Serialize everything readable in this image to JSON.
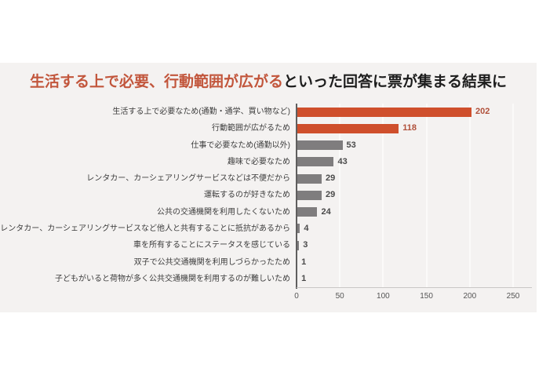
{
  "title": {
    "highlight": "生活する上で必要、行動範囲が広がる",
    "rest": "といった回答に票が集まる結果に"
  },
  "colors": {
    "panel_bg": "#f4f2f1",
    "highlight_bar": "#cf4f2c",
    "default_bar": "#7f7d7e",
    "highlight_value_text": "#b0503a",
    "default_value_text": "#4a4a4a",
    "title_highlight_text": "#c2563c",
    "axis_line": "#5f5e5e",
    "gridline": "#fbfaf9"
  },
  "chart_data": {
    "type": "bar",
    "orientation": "horizontal",
    "title": "生活する上で必要、行動範囲が広がるといった回答に票が集まる結果に",
    "xlabel": "",
    "ylabel": "",
    "categories": [
      "生活する上で必要なため(通勤・通学、買い物など)",
      "行動範囲が広がるため",
      "仕事で必要なため(通勤以外)",
      "趣味で必要なため",
      "レンタカー、カーシェアリングサービスなどは不便だから",
      "運転するのが好きなため",
      "公共の交通機関を利用したくないため",
      "レンタカー、カーシェアリングサービスなど他人と共有することに抵抗があるから",
      "車を所有することにステータスを感じている",
      "双子で公共交通機関を利用しづらかったため",
      "子どもがいると荷物が多く公共交通機関を利用するのが難しいため"
    ],
    "values": [
      202,
      118,
      53,
      43,
      29,
      29,
      24,
      4,
      3,
      1,
      1
    ],
    "highlighted": [
      true,
      true,
      false,
      false,
      false,
      false,
      false,
      false,
      false,
      false,
      false
    ],
    "xlim": [
      0,
      250
    ],
    "xticks": [
      0,
      50,
      100,
      150,
      200,
      250
    ],
    "grid": true,
    "legend": false
  }
}
